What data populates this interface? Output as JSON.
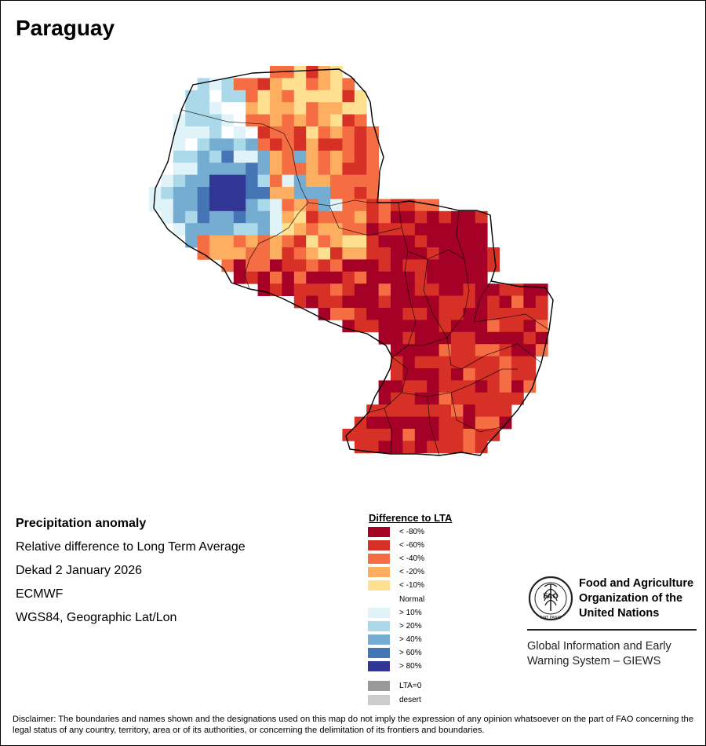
{
  "title": "Paraguay",
  "info": {
    "heading": "Precipitation anomaly",
    "line1": "Relative difference to Long Term Average",
    "line2": "Dekad 2 January 2026",
    "line3": "ECMWF",
    "line4": "WGS84, Geographic Lat/Lon"
  },
  "legend": {
    "title": "Difference to LTA",
    "items": [
      {
        "label": "< -80%",
        "color": "#a50026"
      },
      {
        "label": "< -60%",
        "color": "#d73027"
      },
      {
        "label": "< -40%",
        "color": "#f46d43"
      },
      {
        "label": "< -20%",
        "color": "#fdae61"
      },
      {
        "label": "< -10%",
        "color": "#fee090"
      },
      {
        "label": "Normal",
        "color": "#ffffff"
      },
      {
        "label": "> 10%",
        "color": "#e0f3f8"
      },
      {
        "label": "> 20%",
        "color": "#abd9e9"
      },
      {
        "label": "> 40%",
        "color": "#74add1"
      },
      {
        "label": "> 60%",
        "color": "#4575b4"
      },
      {
        "label": "> 80%",
        "color": "#313695"
      },
      {
        "label": "LTA=0",
        "color": "#999999"
      },
      {
        "label": "desert",
        "color": "#cccccc"
      }
    ]
  },
  "fao": {
    "name_line1": "Food and Agriculture",
    "name_line2": "Organization of the",
    "name_line3": "United Nations",
    "emblem_text": "FAO",
    "emblem_motto": "FIAT PANIS",
    "giews_line1": "Global Information and Early",
    "giews_line2": "Warning System – GIEWS"
  },
  "disclaimer": "Disclaimer: The boundaries and names shown and the designations used on this map do not imply the expression of any opinion whatsoever on the part of FAO concerning the legal status of any country, territory, area or of its authorities, or concerning the delimitation of its frontiers and boundaries.",
  "map_data": {
    "country": "Paraguay",
    "anomaly_classes": [
      "< -80%",
      "< -60%",
      "< -40%",
      "< -20%",
      "< -10%",
      "Normal",
      "> 10%",
      "> 20%",
      "> 40%",
      "> 60%",
      "> 80%"
    ],
    "regions": [
      {
        "name": "north-chaco-core",
        "class": 3,
        "patches": [
          [
            1,
            4
          ],
          [
            2,
            3
          ],
          [
            2,
            6
          ]
        ]
      },
      {
        "name": "northeast-chaco",
        "class": 2,
        "patches": [
          [
            1,
            1
          ],
          [
            0,
            2
          ],
          [
            3,
            2
          ]
        ]
      },
      {
        "name": "western-chaco",
        "class": 7,
        "patches": [
          [
            6,
            7
          ],
          [
            7,
            8
          ],
          [
            8,
            6
          ],
          [
            9,
            7
          ]
        ]
      },
      {
        "name": "central-chaco-wet",
        "class": 10,
        "patches": [
          [
            9,
            10
          ],
          [
            10,
            10
          ]
        ]
      },
      {
        "name": "chaco-transition",
        "class": 4,
        "patches": [
          [
            6,
            3
          ],
          [
            5,
            10
          ]
        ]
      },
      {
        "name": "eastern-paraguay",
        "class": 0,
        "patches": [
          [
            1,
            0
          ],
          [
            0,
            0
          ],
          [
            2,
            1
          ]
        ]
      },
      {
        "name": "southern-paraguay",
        "class": 1,
        "patches": [
          [
            1,
            1
          ],
          [
            0,
            1
          ],
          [
            2,
            2
          ]
        ]
      }
    ]
  }
}
